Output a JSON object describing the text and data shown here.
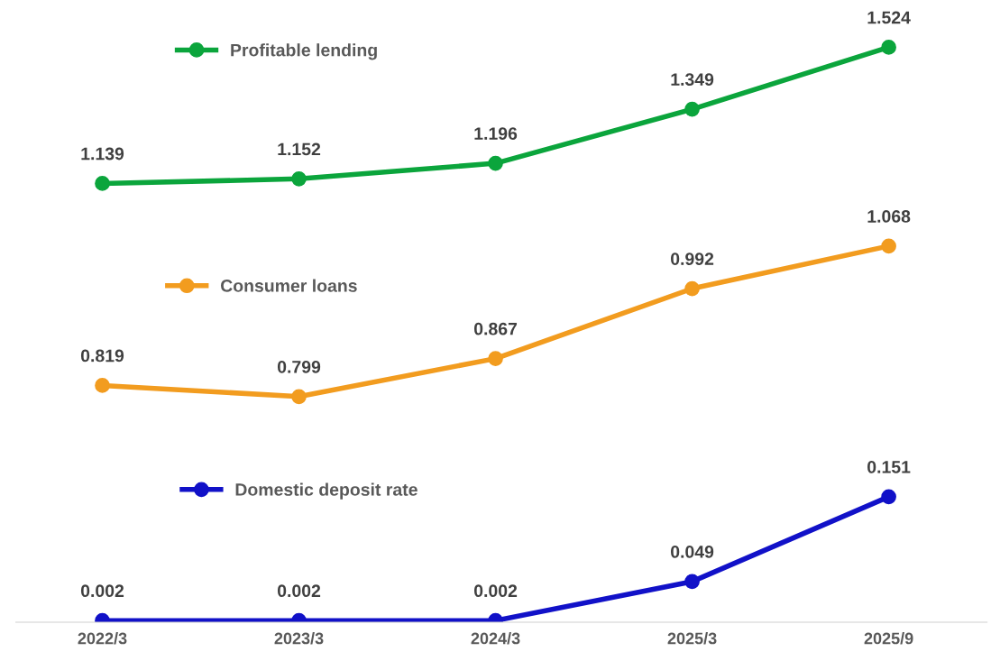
{
  "chart_data": [
    {
      "type": "line",
      "categories": [
        "2022/3",
        "2023/3",
        "2024/3",
        "2025/3",
        "2025/9"
      ],
      "series": [
        {
          "name": "Profitable lending",
          "color": "#0ba53c",
          "values": [
            1.139,
            1.152,
            1.196,
            1.349,
            1.524
          ]
        }
      ],
      "data_labels": true,
      "legend": "top left",
      "marker": "circle",
      "line_style": "solid",
      "tick_labels": false
    },
    {
      "type": "line",
      "categories": [
        "2022/3",
        "2023/3",
        "2024/3",
        "2025/3",
        "2025/9"
      ],
      "series": [
        {
          "name": "Consumer loans",
          "color": "#f29c1f",
          "values": [
            0.819,
            0.799,
            0.867,
            0.992,
            1.068
          ]
        }
      ],
      "data_labels": true,
      "legend": "top left",
      "marker": "circle",
      "line_style": "solid",
      "tick_labels": false
    },
    {
      "type": "line",
      "categories": [
        "2022/3",
        "2023/3",
        "2024/3",
        "2025/3",
        "2025/9"
      ],
      "series": [
        {
          "name": "Domestic deposit rate",
          "color": "#1111c8",
          "values": [
            0.002,
            0.002,
            0.002,
            0.049,
            0.151
          ]
        }
      ],
      "data_labels": true,
      "legend": "top left",
      "marker": "circle",
      "line_style": "solid",
      "tick_labels": "x"
    }
  ]
}
